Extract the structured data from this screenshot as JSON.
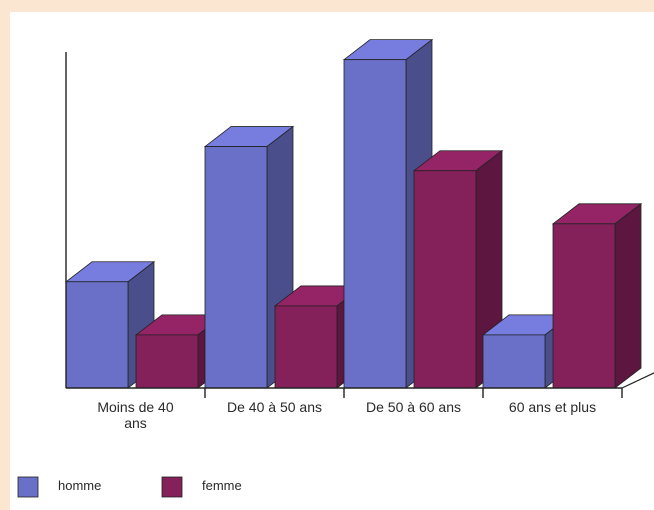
{
  "chart_data": {
    "type": "bar",
    "style": "3d-clustered-column",
    "categories": [
      [
        "Moins de 40",
        "ans"
      ],
      [
        "De 40 à 50 ans"
      ],
      [
        "De 50 à 60 ans"
      ],
      [
        "60 ans et plus"
      ]
    ],
    "series": [
      {
        "name": "homme",
        "color": "#6a6fc7",
        "values": [
          11,
          25,
          34,
          5.5
        ]
      },
      {
        "name": "femme",
        "color": "#84205a",
        "values": [
          5.5,
          8.5,
          22.5,
          17
        ]
      }
    ],
    "ylim": [
      0,
      35
    ],
    "grid": false,
    "legend": "bottom-left"
  }
}
